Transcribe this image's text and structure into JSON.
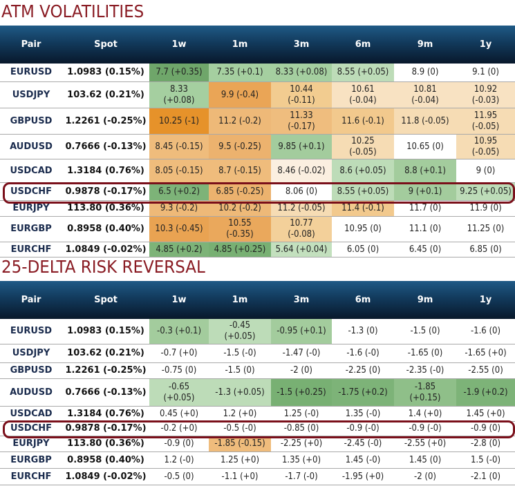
{
  "atm": {
    "title": "ATM VOLATILITIES",
    "columns": [
      "Pair",
      "Spot",
      "1w",
      "1m",
      "3m",
      "6m",
      "9m",
      "1y"
    ],
    "highlight": "USDCHF",
    "rows": [
      {
        "pair": "EURUSD",
        "spot": "1.0983 (0.15%)",
        "cells": [
          [
            "7.7 (+0.35)",
            "#6fa66a"
          ],
          [
            "7.35 (+0.1)",
            "#a5cfa0"
          ],
          [
            "8.33 (+0.08)",
            "#a5cfa0"
          ],
          [
            "8.55 (+0.05)",
            "#bddcb8"
          ],
          [
            "8.9 (0)",
            "#ffffff"
          ],
          [
            "9.1 (0)",
            "#ffffff"
          ]
        ]
      },
      {
        "pair": "USDJPY",
        "spot": "103.62 (0.21%)",
        "cells": [
          [
            "8.33 (+0.08)",
            "#a5cfa0"
          ],
          [
            "9.9 (-0.4)",
            "#eaa556"
          ],
          [
            "10.44 (-0.11)",
            "#f2cc90"
          ],
          [
            "10.61 (-0.04)",
            "#f8e2c2"
          ],
          [
            "10.81 (-0.04)",
            "#f8e2c2"
          ],
          [
            "10.92 (-0.03)",
            "#f8e2c2"
          ]
        ]
      },
      {
        "pair": "GBPUSD",
        "spot": "1.2261 (-0.25%)",
        "cells": [
          [
            "10.25 (-1)",
            "#e6922a"
          ],
          [
            "11.2 (-0.2)",
            "#eeb978"
          ],
          [
            "11.33 (-0.17)",
            "#efbd7e"
          ],
          [
            "11.6 (-0.1)",
            "#f2c98d"
          ],
          [
            "11.8 (-0.05)",
            "#f6dcb4"
          ],
          [
            "11.95 (-0.05)",
            "#f6dcb4"
          ]
        ]
      },
      {
        "pair": "AUDUSD",
        "spot": "0.7666 (-0.13%)",
        "cells": [
          [
            "8.45 (-0.15)",
            "#efbc7c"
          ],
          [
            "9.5 (-0.25)",
            "#ecb26e"
          ],
          [
            "9.85 (+0.1)",
            "#a3cc9d"
          ],
          [
            "10.25 (-0.05)",
            "#f6dcb4"
          ],
          [
            "10.65 (0)",
            "#ffffff"
          ],
          [
            "10.95 (-0.05)",
            "#f6dcb4"
          ]
        ]
      },
      {
        "pair": "USDCAD",
        "spot": "1.3184 (0.76%)",
        "cells": [
          [
            "8.05 (-0.15)",
            "#efbc7c"
          ],
          [
            "8.7 (-0.15)",
            "#efbc7c"
          ],
          [
            "8.46 (-0.02)",
            "#fbefe0"
          ],
          [
            "8.6 (+0.05)",
            "#bddcb8"
          ],
          [
            "8.8 (+0.1)",
            "#a3cc9d"
          ],
          [
            "9 (0)",
            "#ffffff"
          ]
        ]
      },
      {
        "pair": "USDCHF",
        "spot": "0.9878 (-0.17%)",
        "cells": [
          [
            "6.5 (+0.2)",
            "#7db378"
          ],
          [
            "6.85 (-0.25)",
            "#ecb26e"
          ],
          [
            "8.06 (0)",
            "#ffffff"
          ],
          [
            "8.55 (+0.05)",
            "#bddcb8"
          ],
          [
            "9 (+0.1)",
            "#a3cc9d"
          ],
          [
            "9.25 (+0.05)",
            "#bddcb8"
          ]
        ]
      },
      {
        "pair": "EURJPY",
        "spot": "113.80 (0.36%)",
        "cells": [
          [
            "9.3 (-0.2)",
            "#eeb978"
          ],
          [
            "10.2 (-0.2)",
            "#eeb978"
          ],
          [
            "11.2 (-0.05)",
            "#f6dcb4"
          ],
          [
            "11.4 (-0.1)",
            "#f2c98d"
          ],
          [
            "11.7 (0)",
            "#ffffff"
          ],
          [
            "11.9 (0)",
            "#ffffff"
          ]
        ]
      },
      {
        "pair": "EURGBP",
        "spot": "0.8958 (0.40%)",
        "cells": [
          [
            "10.3 (-0.45)",
            "#e9a352"
          ],
          [
            "10.55 (-0.35)",
            "#eaa85c"
          ],
          [
            "10.77 (-0.08)",
            "#f3d09a"
          ],
          [
            "10.95 (0)",
            "#ffffff"
          ],
          [
            "11.1 (0)",
            "#ffffff"
          ],
          [
            "11.25 (0)",
            "#ffffff"
          ]
        ]
      },
      {
        "pair": "EURCHF",
        "spot": "1.0849 (-0.02%)",
        "cells": [
          [
            "4.85 (+0.2)",
            "#7db378"
          ],
          [
            "4.85 (+0.25)",
            "#78b073"
          ],
          [
            "5.64 (+0.04)",
            "#c3e0be"
          ],
          [
            "6.05 (0)",
            "#ffffff"
          ],
          [
            "6.45 (0)",
            "#ffffff"
          ],
          [
            "6.85 (0)",
            "#ffffff"
          ]
        ]
      }
    ]
  },
  "rr": {
    "title": "25-DELTA RISK REVERSAL",
    "columns": [
      "Pair",
      "Spot",
      "1w",
      "1m",
      "3m",
      "6m",
      "9m",
      "1y"
    ],
    "highlight": "USDCHF",
    "rows": [
      {
        "pair": "EURUSD",
        "spot": "1.0983 (0.15%)",
        "cells": [
          [
            "-0.3 (+0.1)",
            "#a3cc9d"
          ],
          [
            "-0.45 (+0.05)",
            "#bddcb8"
          ],
          [
            "-0.95 (+0.1)",
            "#a3cc9d"
          ],
          [
            "-1.3 (0)",
            "#ffffff"
          ],
          [
            "-1.5 (0)",
            "#ffffff"
          ],
          [
            "-1.6 (0)",
            "#ffffff"
          ]
        ]
      },
      {
        "pair": "USDJPY",
        "spot": "103.62 (0.21%)",
        "cells": [
          [
            "-0.7 (+0)",
            "#ffffff"
          ],
          [
            "-1.5 (-0)",
            "#ffffff"
          ],
          [
            "-1.47 (-0)",
            "#ffffff"
          ],
          [
            "-1.6 (-0)",
            "#ffffff"
          ],
          [
            "-1.65 (0)",
            "#ffffff"
          ],
          [
            "-1.65 (+0)",
            "#ffffff"
          ]
        ]
      },
      {
        "pair": "GBPUSD",
        "spot": "1.2261 (-0.25%)",
        "cells": [
          [
            "-0.75 (0)",
            "#ffffff"
          ],
          [
            "-1.5 (0)",
            "#ffffff"
          ],
          [
            "-2 (0)",
            "#ffffff"
          ],
          [
            "-2.25 (0)",
            "#ffffff"
          ],
          [
            "-2.35 (-0)",
            "#ffffff"
          ],
          [
            "-2.55 (0)",
            "#ffffff"
          ]
        ]
      },
      {
        "pair": "AUDUSD",
        "spot": "0.7666 (-0.13%)",
        "cells": [
          [
            "-0.65 (+0.05)",
            "#bddcb8"
          ],
          [
            "-1.3 (+0.05)",
            "#bddcb8"
          ],
          [
            "-1.5 (+0.25)",
            "#78b073"
          ],
          [
            "-1.75 (+0.2)",
            "#7db378"
          ],
          [
            "-1.85 (+0.15)",
            "#8fbf89"
          ],
          [
            "-1.9 (+0.2)",
            "#7db378"
          ]
        ]
      },
      {
        "pair": "USDCAD",
        "spot": "1.3184 (0.76%)",
        "cells": [
          [
            "0.45 (+0)",
            "#ffffff"
          ],
          [
            "1.2 (+0)",
            "#ffffff"
          ],
          [
            "1.25 (-0)",
            "#ffffff"
          ],
          [
            "1.35 (-0)",
            "#ffffff"
          ],
          [
            "1.4 (+0)",
            "#ffffff"
          ],
          [
            "1.45 (+0)",
            "#ffffff"
          ]
        ]
      },
      {
        "pair": "USDCHF",
        "spot": "0.9878 (-0.17%)",
        "cells": [
          [
            "-0.2 (+0)",
            "#ffffff"
          ],
          [
            "-0.5 (-0)",
            "#ffffff"
          ],
          [
            "-0.85 (0)",
            "#ffffff"
          ],
          [
            "-0.9 (-0)",
            "#ffffff"
          ],
          [
            "-0.9 (-0)",
            "#ffffff"
          ],
          [
            "-0.9 (0)",
            "#ffffff"
          ]
        ]
      },
      {
        "pair": "EURJPY",
        "spot": "113.80 (0.36%)",
        "cells": [
          [
            "-0.9 (0)",
            "#ffffff"
          ],
          [
            "-1.85 (-0.15)",
            "#efbc7c"
          ],
          [
            "-2.25 (+0)",
            "#ffffff"
          ],
          [
            "-2.45 (-0)",
            "#ffffff"
          ],
          [
            "-2.55 (+0)",
            "#ffffff"
          ],
          [
            "-2.8 (0)",
            "#ffffff"
          ]
        ]
      },
      {
        "pair": "EURGBP",
        "spot": "0.8958 (0.40%)",
        "cells": [
          [
            "1.2 (-0)",
            "#ffffff"
          ],
          [
            "1.25 (+0)",
            "#ffffff"
          ],
          [
            "1.35 (+0)",
            "#ffffff"
          ],
          [
            "1.45 (-0)",
            "#ffffff"
          ],
          [
            "1.45 (0)",
            "#ffffff"
          ],
          [
            "1.5 (-0)",
            "#ffffff"
          ]
        ]
      },
      {
        "pair": "EURCHF",
        "spot": "1.0849 (-0.02%)",
        "cells": [
          [
            "-0.5 (0)",
            "#ffffff"
          ],
          [
            "-1.1 (+0)",
            "#ffffff"
          ],
          [
            "-1.7 (-0)",
            "#ffffff"
          ],
          [
            "-1.95 (+0)",
            "#ffffff"
          ],
          [
            "-2 (0)",
            "#ffffff"
          ],
          [
            "-2.1 (0)",
            "#ffffff"
          ]
        ]
      }
    ]
  },
  "colors": {
    "title": "#8a1c24",
    "highlight_outline": "#7a0f1a",
    "header_bg": "#0d2740"
  }
}
